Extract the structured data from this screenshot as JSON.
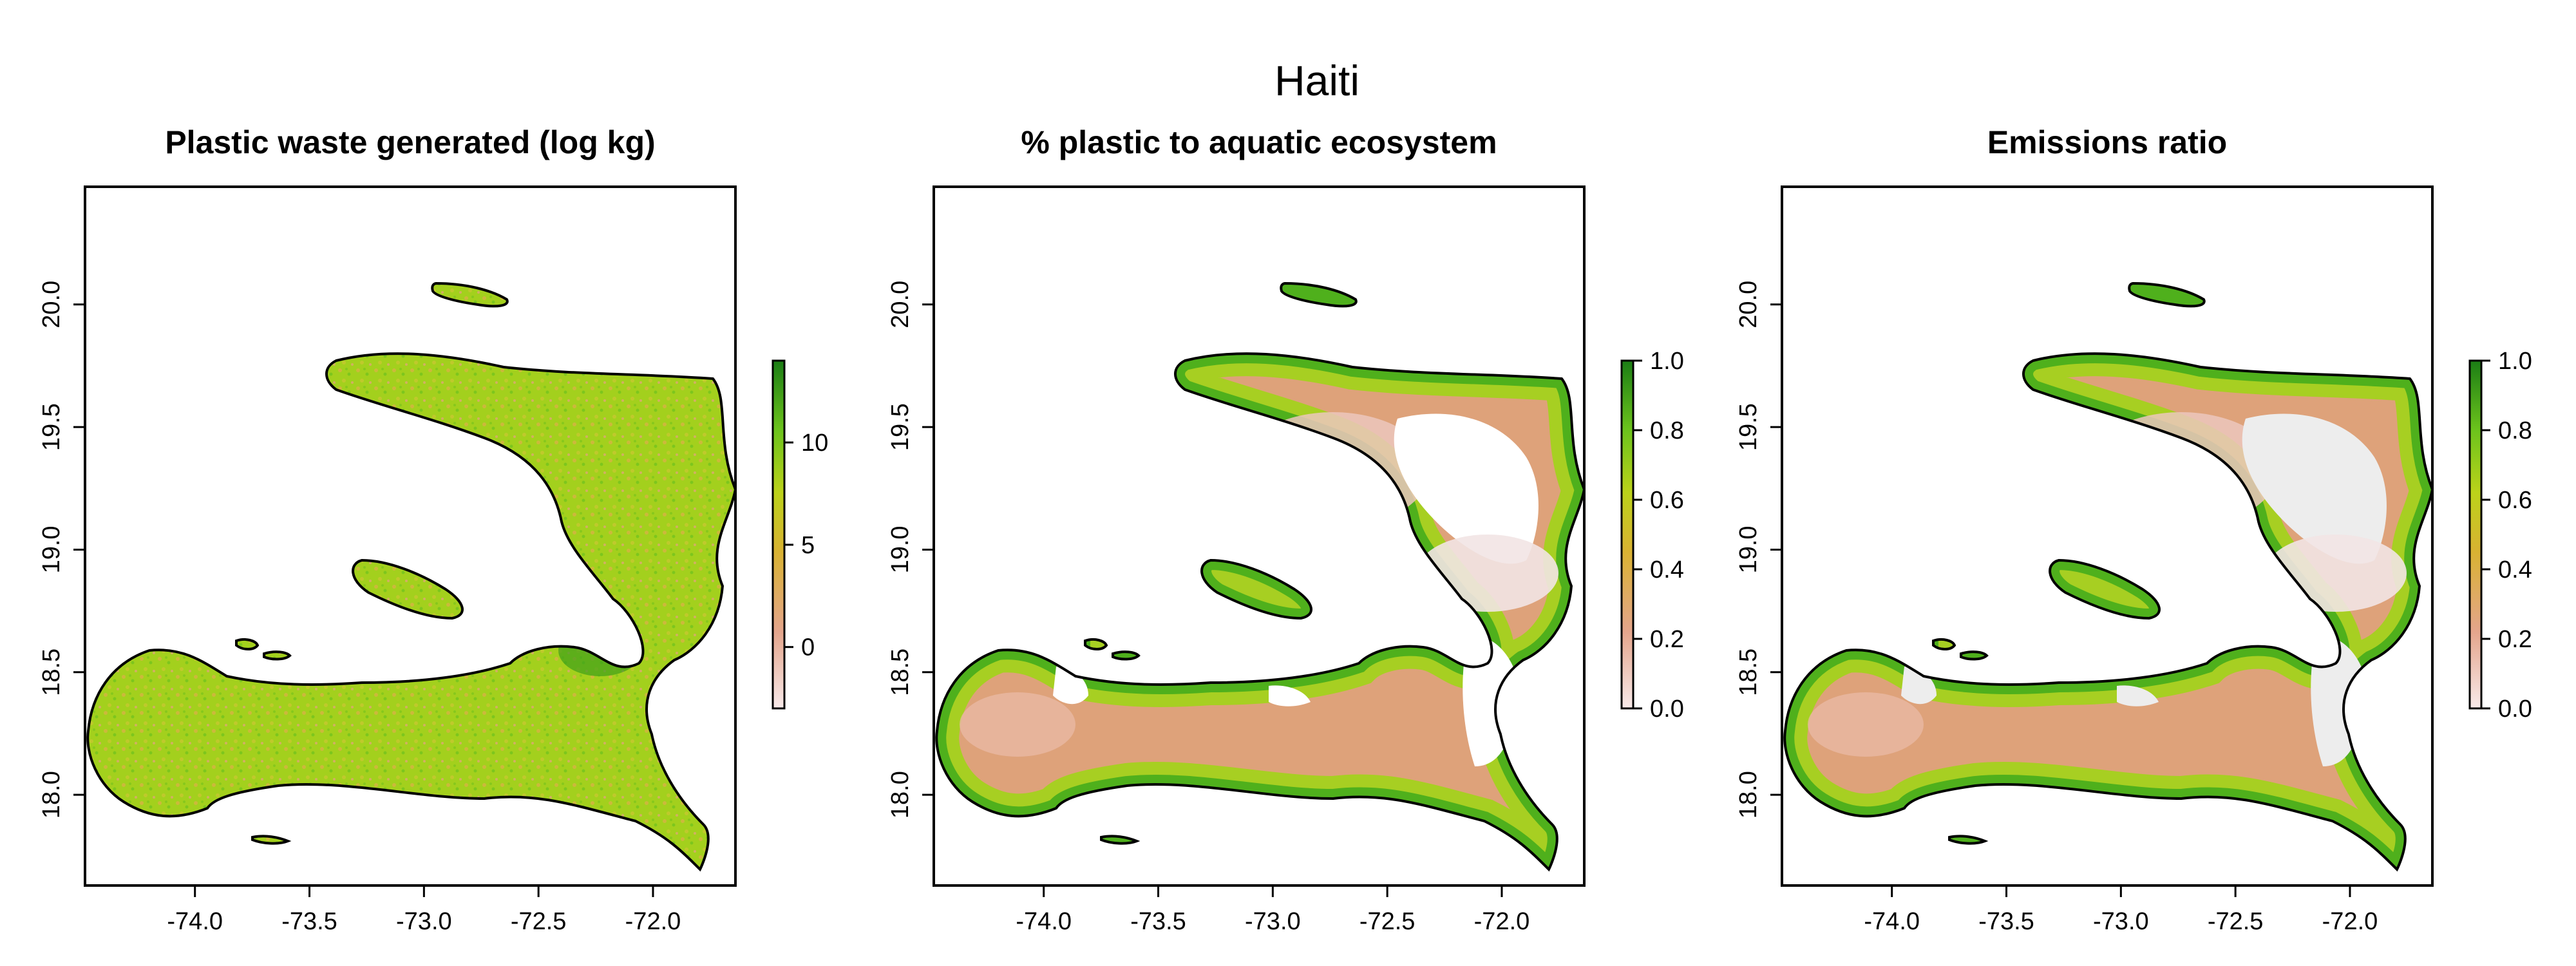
{
  "title": "Haiti",
  "x_ticks": [
    "-74.0",
    "-73.5",
    "-73.0",
    "-72.5",
    "-72.0"
  ],
  "y_ticks": [
    "18.0",
    "18.5",
    "19.0",
    "19.5",
    "20.0"
  ],
  "colors": {
    "low": "#f3e6e6",
    "mid_low": "#e6b08a",
    "mid": "#d7b33a",
    "mid_high": "#a6cf1e",
    "high": "#1e8c1a",
    "no_data": "#ffffff",
    "emissions_gray": "#ededed"
  },
  "panels": [
    {
      "id": "plastic-waste",
      "title": "Plastic waste generated (log kg)",
      "legend_ticks": [
        "0",
        "5",
        "10"
      ],
      "legend_range": [
        -3,
        14
      ]
    },
    {
      "id": "pct-aquatic",
      "title": "% plastic to aquatic ecosystem",
      "legend_ticks": [
        "0.0",
        "0.2",
        "0.4",
        "0.6",
        "0.8",
        "1.0"
      ],
      "legend_range": [
        0,
        1
      ]
    },
    {
      "id": "emissions-ratio",
      "title": "Emissions ratio",
      "legend_ticks": [
        "0.0",
        "0.2",
        "0.4",
        "0.6",
        "0.8",
        "1.0"
      ],
      "legend_range": [
        0,
        1
      ]
    }
  ]
}
